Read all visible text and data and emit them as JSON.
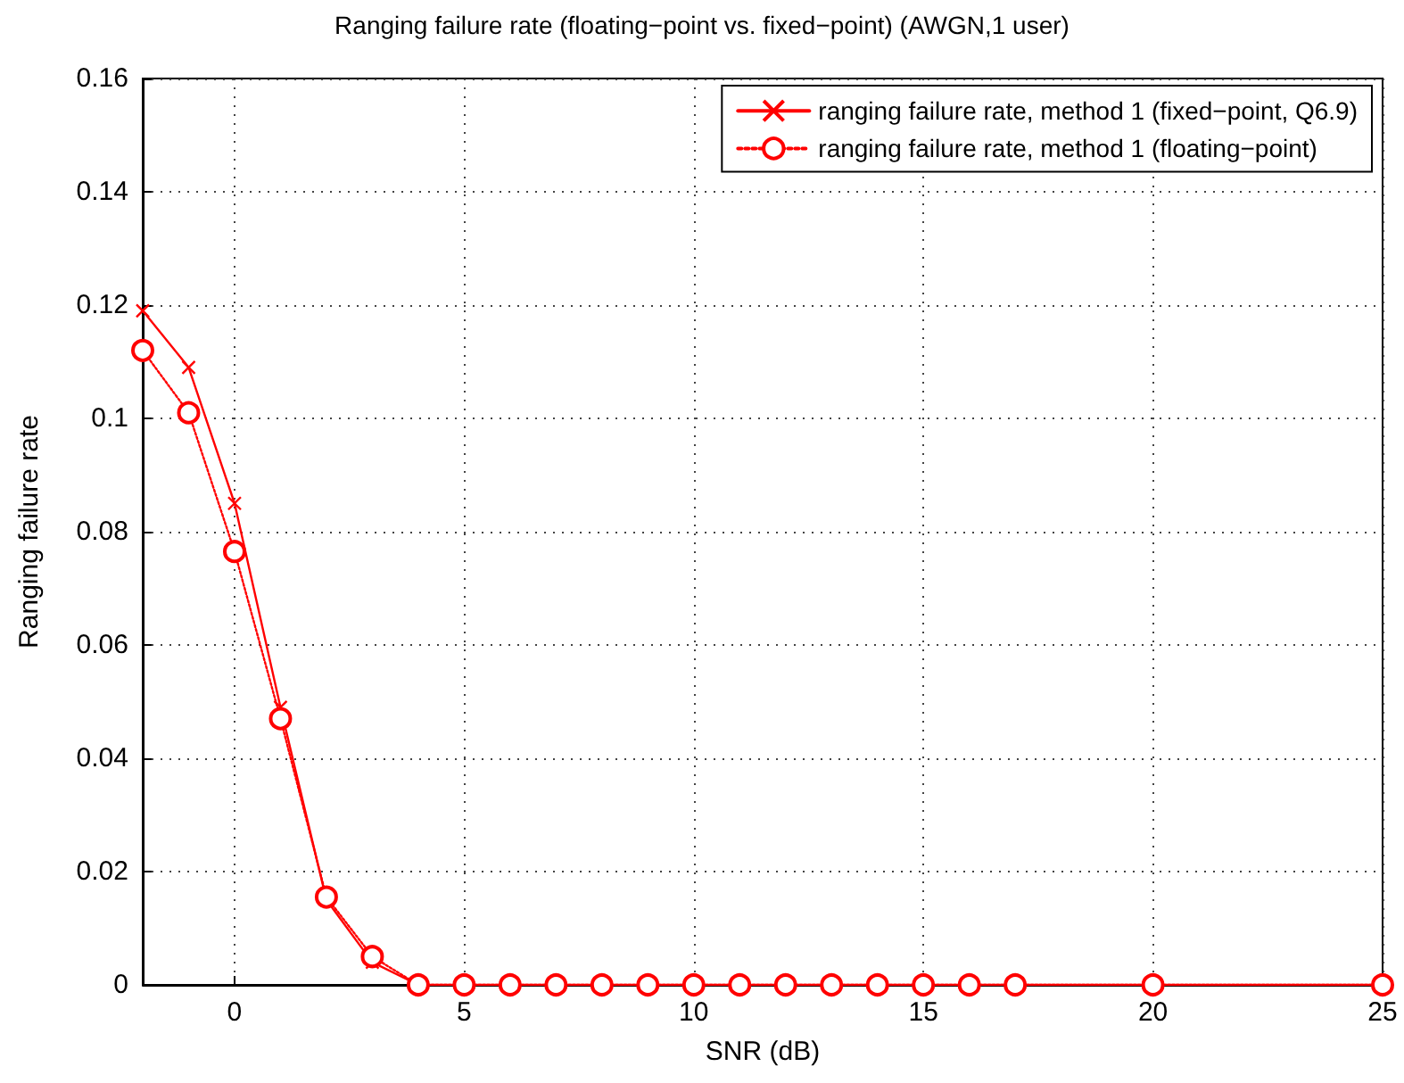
{
  "chart_data": {
    "type": "line",
    "title": "Ranging failure rate (floating−point vs. fixed−point) (AWGN,1 user)",
    "xlabel": "SNR (dB)",
    "ylabel": "Ranging failure rate",
    "x": [
      -2,
      -1,
      0,
      1,
      2,
      3,
      4,
      5,
      6,
      7,
      8,
      9,
      10,
      11,
      12,
      13,
      14,
      15,
      16,
      17,
      20,
      25
    ],
    "series": [
      {
        "name": "ranging failure rate, method 1 (fixed−point, Q6.9)",
        "color": "#ff0000",
        "marker": "cross",
        "line_style": "solid",
        "values": [
          0.119,
          0.109,
          0.085,
          0.049,
          0.015,
          0.004,
          0,
          0,
          0,
          0,
          0,
          0,
          0,
          0,
          0,
          0,
          0,
          0,
          0,
          0,
          0,
          0
        ]
      },
      {
        "name": "ranging failure rate, method 1 (floating−point)",
        "color": "#ff0000",
        "marker": "circle",
        "line_style": "dotted",
        "values": [
          0.112,
          0.101,
          0.0765,
          0.047,
          0.0155,
          0.005,
          0,
          0,
          0,
          0,
          0,
          0,
          0,
          0,
          0,
          0,
          0,
          0,
          0,
          0,
          0,
          0
        ]
      }
    ],
    "xlim": [
      -2,
      25
    ],
    "xticks": [
      0,
      5,
      10,
      15,
      20,
      25
    ],
    "ylim": [
      0,
      0.16
    ],
    "yticks": [
      0,
      0.02,
      0.04,
      0.06,
      0.08,
      0.1,
      0.12,
      0.14,
      0.16
    ],
    "grid": true,
    "legend": "top right"
  }
}
